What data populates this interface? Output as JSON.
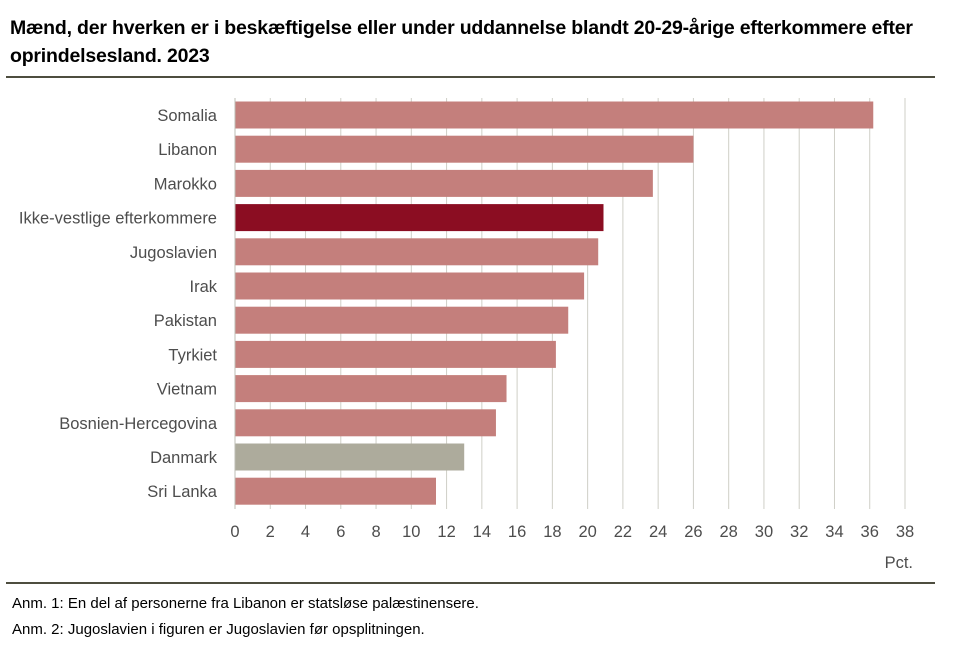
{
  "title": "Mænd, der hverken er i beskæftigelse eller under uddannelse blandt 20-29-årige efterkommere efter oprindelsesland. 2023",
  "chart_data": {
    "type": "bar",
    "orientation": "horizontal",
    "title": "Mænd, der hverken er i beskæftigelse eller under uddannelse blandt 20-29-årige efterkommere efter oprindelsesland. 2023",
    "xlabel": "Pct.",
    "ylabel": "",
    "xlim": [
      0,
      38
    ],
    "xticks": [
      "0",
      "2",
      "4",
      "6",
      "8",
      "10",
      "12",
      "14",
      "16",
      "18",
      "20",
      "22",
      "24",
      "26",
      "28",
      "30",
      "32",
      "34",
      "36",
      "38"
    ],
    "grid": true,
    "categories": [
      "Somalia",
      "Libanon",
      "Marokko",
      "Ikke-vestlige efterkommere",
      "Jugoslavien",
      "Irak",
      "Pakistan",
      "Tyrkiet",
      "Vietnam",
      "Bosnien-Hercegovina",
      "Danmark",
      "Sri Lanka"
    ],
    "values": [
      36.2,
      26.0,
      23.7,
      20.9,
      20.6,
      19.8,
      18.9,
      18.2,
      15.4,
      14.8,
      13.0,
      11.4
    ],
    "colors": [
      "#c47f7c",
      "#c47f7c",
      "#c47f7c",
      "#8b0d22",
      "#c47f7c",
      "#c47f7c",
      "#c47f7c",
      "#c47f7c",
      "#c47f7c",
      "#c47f7c",
      "#adab9c",
      "#c47f7c"
    ]
  },
  "notes": [
    "Anm. 1: En del af personerne fra Libanon er statsløse palæstinensere.",
    "Anm. 2: Jugoslavien i figuren er Jugoslavien før opsplitningen."
  ]
}
